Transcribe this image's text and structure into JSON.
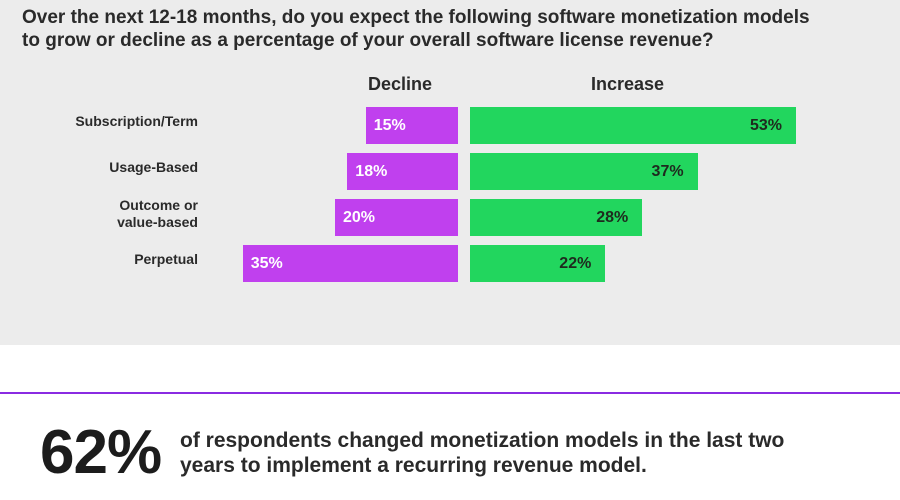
{
  "question": {
    "line1": "Over the next 12-18 months, do you expect the following software monetization models",
    "line2": "to grow or decline as a percentage of your overall software license revenue?"
  },
  "colors": {
    "decline": "#c040ee",
    "increase": "#22d65e",
    "panel": "#ececec",
    "divider": "#8a2be2"
  },
  "chart_data": {
    "type": "bar",
    "title": "",
    "categories": [
      "Subscription/Term",
      "Usage-Based",
      "Outcome or\nvalue-based",
      "Perpetual"
    ],
    "series": [
      {
        "name": "Decline",
        "values": [
          15,
          18,
          20,
          35
        ],
        "labels": [
          "15%",
          "18%",
          "20%",
          "35%"
        ]
      },
      {
        "name": "Increase",
        "values": [
          53,
          37,
          28,
          22
        ],
        "labels": [
          "53%",
          "37%",
          "28%",
          "22%"
        ]
      }
    ],
    "xlabel": "",
    "ylabel": ""
  },
  "stat": {
    "number": "62%",
    "line1": "of respondents changed monetization models in the last two",
    "line2": "years to implement a recurring revenue model."
  }
}
